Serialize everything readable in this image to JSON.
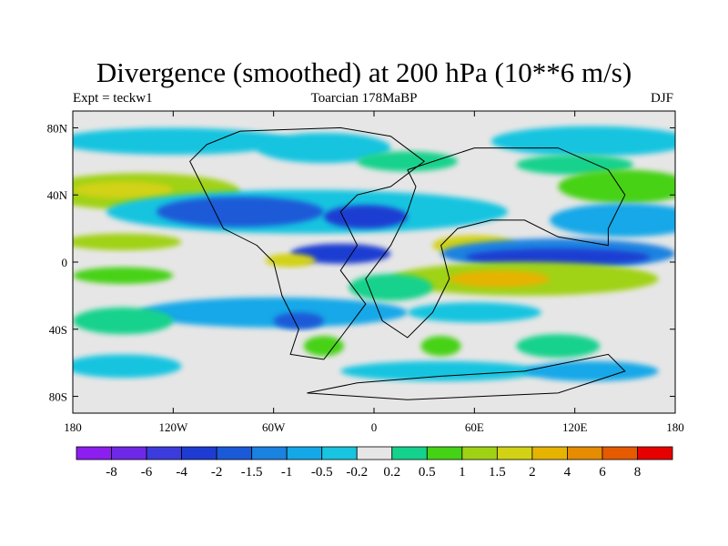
{
  "title": "Divergence (smoothed) at 200 hPa (10**6 m/s)",
  "subtitle_left": "Expt = teckw1",
  "subtitle_center": "Toarcian 178MaBP",
  "subtitle_right": "DJF",
  "map": {
    "lon_range": [
      -180,
      180
    ],
    "lat_range": [
      -90,
      90
    ],
    "ocean_color": "#e6e6e6",
    "y_ticks": [
      {
        "lat": 80,
        "label": "80N"
      },
      {
        "lat": 40,
        "label": "40N"
      },
      {
        "lat": 0,
        "label": "0"
      },
      {
        "lat": -40,
        "label": "40S"
      },
      {
        "lat": -80,
        "label": "80S"
      }
    ],
    "x_ticks": [
      {
        "lon": -180,
        "label": "180"
      },
      {
        "lon": -120,
        "label": "120W"
      },
      {
        "lon": -60,
        "label": "60W"
      },
      {
        "lon": 0,
        "label": "0"
      },
      {
        "lon": 60,
        "label": "60E"
      },
      {
        "lon": 120,
        "label": "120E"
      },
      {
        "lon": 180,
        "label": "180"
      }
    ],
    "fields": [
      {
        "lon": -120,
        "lat": 72,
        "rx": 70,
        "ry": 8,
        "level": 7
      },
      {
        "lon": -30,
        "lat": 68,
        "rx": 40,
        "ry": 9,
        "level": 7
      },
      {
        "lon": 130,
        "lat": 72,
        "rx": 60,
        "ry": 9,
        "level": 7
      },
      {
        "lon": 20,
        "lat": 60,
        "rx": 30,
        "ry": 6,
        "level": 9
      },
      {
        "lon": 120,
        "lat": 58,
        "rx": 35,
        "ry": 6,
        "level": 9
      },
      {
        "lon": -140,
        "lat": 42,
        "rx": 60,
        "ry": 11,
        "level": 11
      },
      {
        "lon": -150,
        "lat": 43,
        "rx": 30,
        "ry": 5,
        "level": 12
      },
      {
        "lon": 150,
        "lat": 45,
        "rx": 40,
        "ry": 10,
        "level": 10
      },
      {
        "lon": -40,
        "lat": 30,
        "rx": 120,
        "ry": 13,
        "level": 7
      },
      {
        "lon": -80,
        "lat": 30,
        "rx": 50,
        "ry": 9,
        "level": 4
      },
      {
        "lon": -5,
        "lat": 27,
        "rx": 25,
        "ry": 7,
        "level": 3
      },
      {
        "lon": 150,
        "lat": 25,
        "rx": 45,
        "ry": 10,
        "level": 6
      },
      {
        "lon": -150,
        "lat": 12,
        "rx": 35,
        "ry": 5,
        "level": 11
      },
      {
        "lon": 60,
        "lat": 10,
        "rx": 25,
        "ry": 6,
        "level": 12
      },
      {
        "lon": 110,
        "lat": 5,
        "rx": 70,
        "ry": 9,
        "level": 5
      },
      {
        "lon": 110,
        "lat": 3,
        "rx": 55,
        "ry": 5,
        "level": 3
      },
      {
        "lon": -20,
        "lat": 5,
        "rx": 30,
        "ry": 6,
        "level": 3
      },
      {
        "lon": -50,
        "lat": 1,
        "rx": 15,
        "ry": 4,
        "level": 12
      },
      {
        "lon": 90,
        "lat": -10,
        "rx": 80,
        "ry": 10,
        "level": 11
      },
      {
        "lon": 75,
        "lat": -10,
        "rx": 30,
        "ry": 5,
        "level": 13
      },
      {
        "lon": -150,
        "lat": -8,
        "rx": 30,
        "ry": 5,
        "level": 10
      },
      {
        "lon": -60,
        "lat": -30,
        "rx": 80,
        "ry": 9,
        "level": 6
      },
      {
        "lon": -45,
        "lat": -35,
        "rx": 15,
        "ry": 5,
        "level": 4
      },
      {
        "lon": 10,
        "lat": -15,
        "rx": 25,
        "ry": 8,
        "level": 9
      },
      {
        "lon": 60,
        "lat": -30,
        "rx": 40,
        "ry": 6,
        "level": 7
      },
      {
        "lon": -150,
        "lat": -35,
        "rx": 30,
        "ry": 8,
        "level": 9
      },
      {
        "lon": -30,
        "lat": -50,
        "rx": 12,
        "ry": 6,
        "level": 10
      },
      {
        "lon": 40,
        "lat": -50,
        "rx": 12,
        "ry": 6,
        "level": 10
      },
      {
        "lon": 110,
        "lat": -50,
        "rx": 25,
        "ry": 7,
        "level": 9
      },
      {
        "lon": -150,
        "lat": -62,
        "rx": 35,
        "ry": 7,
        "level": 7
      },
      {
        "lon": 40,
        "lat": -65,
        "rx": 60,
        "ry": 6,
        "level": 7
      },
      {
        "lon": 130,
        "lat": -65,
        "rx": 40,
        "ry": 6,
        "level": 6
      }
    ],
    "coastlines": [
      [
        [
          -100,
          70
        ],
        [
          -80,
          78
        ],
        [
          -20,
          80
        ],
        [
          10,
          75
        ],
        [
          30,
          60
        ],
        [
          10,
          45
        ],
        [
          -10,
          40
        ],
        [
          -20,
          30
        ],
        [
          -10,
          10
        ],
        [
          -20,
          -5
        ],
        [
          -5,
          -25
        ],
        [
          -20,
          -45
        ],
        [
          -30,
          -58
        ],
        [
          -50,
          -55
        ],
        [
          -45,
          -40
        ],
        [
          -55,
          -20
        ],
        [
          -60,
          0
        ],
        [
          -70,
          10
        ],
        [
          -90,
          20
        ],
        [
          -100,
          40
        ],
        [
          -110,
          60
        ],
        [
          -100,
          70
        ]
      ],
      [
        [
          20,
          55
        ],
        [
          60,
          68
        ],
        [
          110,
          68
        ],
        [
          140,
          55
        ],
        [
          150,
          40
        ],
        [
          145,
          30
        ],
        [
          140,
          20
        ],
        [
          140,
          10
        ],
        [
          110,
          15
        ],
        [
          90,
          25
        ],
        [
          70,
          25
        ],
        [
          50,
          20
        ],
        [
          40,
          10
        ],
        [
          45,
          -10
        ],
        [
          35,
          -30
        ],
        [
          20,
          -45
        ],
        [
          5,
          -35
        ],
        [
          -5,
          -10
        ],
        [
          10,
          10
        ],
        [
          20,
          30
        ],
        [
          25,
          45
        ],
        [
          20,
          55
        ]
      ],
      [
        [
          -10,
          -72
        ],
        [
          40,
          -68
        ],
        [
          90,
          -65
        ],
        [
          140,
          -55
        ],
        [
          150,
          -65
        ],
        [
          110,
          -78
        ],
        [
          20,
          -82
        ],
        [
          -40,
          -78
        ],
        [
          -10,
          -72
        ]
      ]
    ]
  },
  "colorbar": {
    "colors": [
      "#8c1ef0",
      "#6e28e8",
      "#3c3cdc",
      "#1e3cd2",
      "#1a5ad8",
      "#1a82e0",
      "#14a8e8",
      "#18c4e0",
      "#e6e6e6",
      "#14d28c",
      "#46d214",
      "#a0d214",
      "#d2d214",
      "#e6b400",
      "#e68c00",
      "#e65a00",
      "#e60000"
    ],
    "labels": [
      "-8",
      "-6",
      "-4",
      "-2",
      "-1.5",
      "-1",
      "-0.5",
      "-0.2",
      "0.2",
      "0.5",
      "1",
      "1.5",
      "2",
      "4",
      "6",
      "8"
    ]
  }
}
